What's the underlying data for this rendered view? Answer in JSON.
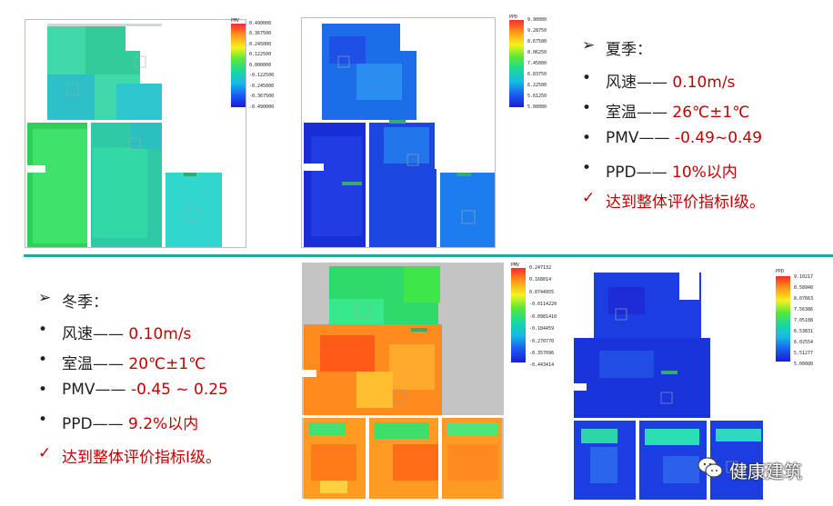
{
  "summer": {
    "heading": "夏季：",
    "items": [
      {
        "label": "风速——",
        "value": "0.10m/s"
      },
      {
        "label": "室温——",
        "value": "26℃±1℃"
      },
      {
        "label": "PMV——",
        "value": "-0.49~0.49"
      },
      {
        "label": "PPD——",
        "value": "10%以内"
      }
    ],
    "conclusion": "达到整体评价指标Ⅰ级。",
    "pmv_scale": {
      "title": "PMV",
      "ticks": [
        "0.490000",
        "0.367500",
        "0.245000",
        "0.122500",
        "0.000000",
        "-0.122500",
        "-0.245000",
        "-0.367500",
        "-0.490000"
      ]
    },
    "ppd_scale": {
      "title": "PPD",
      "ticks": [
        "9.90000",
        "9.28750",
        "8.67500",
        "8.06250",
        "7.45000",
        "6.83750",
        "6.22500",
        "5.61250",
        "5.00000"
      ]
    }
  },
  "winter": {
    "heading": "冬季：",
    "items": [
      {
        "label": "风速——",
        "value": "0.10m/s"
      },
      {
        "label": "室温——",
        "value": "20℃±1℃"
      },
      {
        "label": "PMV——",
        "value": "-0.45 ~ 0.25"
      },
      {
        "label": "PPD——",
        "value": "9.2%以内"
      }
    ],
    "conclusion": "达到整体评价指标Ⅰ级。",
    "pmv_scale": {
      "title": "PMV",
      "ticks": [
        "0.247132",
        "0.168014",
        "0.0744955",
        "-0.0114220",
        "-0.0981410",
        "-0.184459",
        "-0.270770",
        "-0.357096",
        "-0.443414"
      ]
    },
    "ppd_scale": {
      "title": "PPD",
      "ticks": [
        "9.10217",
        "8.58940",
        "8.07663",
        "7.56386",
        "7.05108",
        "6.53831",
        "6.02554",
        "5.51277",
        "5.00000"
      ]
    }
  },
  "symbols": {
    "arrow": "➢",
    "bullet": "•",
    "check": "✓"
  },
  "watermark": {
    "text": "健康建筑",
    "icon": "wechat-icon"
  },
  "colors": {
    "value_red": "#c00000",
    "divider": "#2aa59a"
  }
}
